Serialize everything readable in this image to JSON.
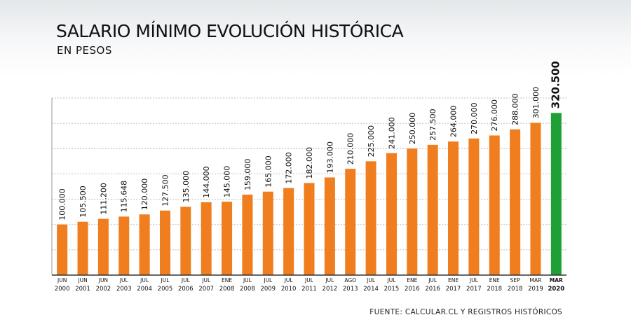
{
  "title": "SALARIO MÍNIMO EVOLUCIÓN HISTÓRICA",
  "subtitle": "EN PESOS",
  "source": "FUENTE: CALCULAR.CL Y REGISTROS HISTÓRICOS",
  "colors": {
    "bar": "#f07d1e",
    "highlight": "#1fa036",
    "grid": "#bdbdbd",
    "axis": "#333333"
  },
  "chart_data": {
    "type": "bar",
    "title": "SALARIO MÍNIMO EVOLUCIÓN HISTÓRICA",
    "subtitle": "EN PESOS",
    "xlabel": "",
    "ylabel": "",
    "ylim": [
      0,
      350000
    ],
    "grid": true,
    "legend": "none",
    "highlight_index": 24,
    "categories": [
      {
        "month": "JUN",
        "year": "2000"
      },
      {
        "month": "JUN",
        "year": "2001"
      },
      {
        "month": "JUN",
        "year": "2002"
      },
      {
        "month": "JUL",
        "year": "2003"
      },
      {
        "month": "JUL",
        "year": "2004"
      },
      {
        "month": "JUL",
        "year": "2005"
      },
      {
        "month": "JUL",
        "year": "2006"
      },
      {
        "month": "JUL",
        "year": "2007"
      },
      {
        "month": "ENE",
        "year": "2008"
      },
      {
        "month": "JUL",
        "year": "2008"
      },
      {
        "month": "JUL",
        "year": "2009"
      },
      {
        "month": "JUL",
        "year": "2010"
      },
      {
        "month": "JUL",
        "year": "2011"
      },
      {
        "month": "JUL",
        "year": "2012"
      },
      {
        "month": "AGO",
        "year": "2013"
      },
      {
        "month": "JUL",
        "year": "2014"
      },
      {
        "month": "JUL",
        "year": "2015"
      },
      {
        "month": "ENE",
        "year": "2016"
      },
      {
        "month": "JUL",
        "year": "2016"
      },
      {
        "month": "ENE",
        "year": "2017"
      },
      {
        "month": "JUL",
        "year": "2017"
      },
      {
        "month": "ENE",
        "year": "2018"
      },
      {
        "month": "SEP",
        "year": "2018"
      },
      {
        "month": "MAR",
        "year": "2019"
      },
      {
        "month": "MAR",
        "year": "2020"
      }
    ],
    "values": [
      100000,
      105500,
      111200,
      115648,
      120000,
      127500,
      135000,
      144000,
      145000,
      159000,
      165000,
      172000,
      182000,
      193000,
      210000,
      225000,
      241000,
      250000,
      257500,
      264000,
      270000,
      276000,
      288000,
      301000,
      320500
    ],
    "labels": [
      "100.000",
      "105.500",
      "111.200",
      "115.648",
      "120.000",
      "127.500",
      "135.000",
      "144.000",
      "145.000",
      "159.000",
      "165.000",
      "172.000",
      "182.000",
      "193.000",
      "210.000",
      "225.000",
      "241.000",
      "250.000",
      "257.500",
      "264.000",
      "270.000",
      "276.000",
      "288.000",
      "301.000",
      "320.500"
    ]
  }
}
